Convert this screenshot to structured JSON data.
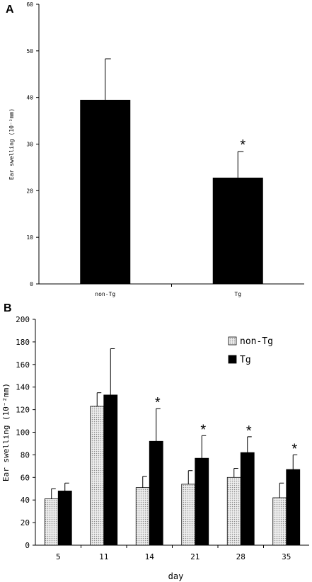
{
  "chart_data": [
    {
      "panel": "A",
      "type": "bar",
      "categories": [
        "non-Tg",
        "Tg"
      ],
      "values": [
        39.5,
        22.8
      ],
      "errors": [
        8.8,
        5.6
      ],
      "significance": [
        "",
        "*"
      ],
      "ylabel": "Ear swelling (10⁻²mm)",
      "xlabel": "",
      "ylim": [
        0,
        60
      ],
      "yticks": [
        0,
        10,
        20,
        30,
        40,
        50,
        60
      ],
      "bar_color": "#000000",
      "grid": false,
      "legend": "none"
    },
    {
      "panel": "B",
      "type": "bar",
      "categories": [
        "5",
        "11",
        "14",
        "21",
        "28",
        "35"
      ],
      "series": [
        {
          "name": "non-Tg",
          "values": [
            41,
            123,
            51,
            54,
            60,
            42
          ],
          "errors": [
            9,
            12,
            10,
            12,
            8,
            13
          ],
          "color": "#d8d8d8",
          "pattern": "dotted"
        },
        {
          "name": "Tg",
          "values": [
            48,
            133,
            92,
            77,
            82,
            67
          ],
          "errors": [
            7,
            41,
            29,
            20,
            14,
            13
          ],
          "color": "#000000"
        }
      ],
      "significance": [
        "",
        "",
        "*",
        "*",
        "*",
        "*"
      ],
      "ylabel": "Ear swelling (10⁻²mm)",
      "xlabel": "day",
      "ylim": [
        0,
        200
      ],
      "yticks": [
        0,
        20,
        40,
        60,
        80,
        100,
        120,
        140,
        160,
        180,
        200
      ],
      "grid": false,
      "legend": "top-right"
    }
  ]
}
